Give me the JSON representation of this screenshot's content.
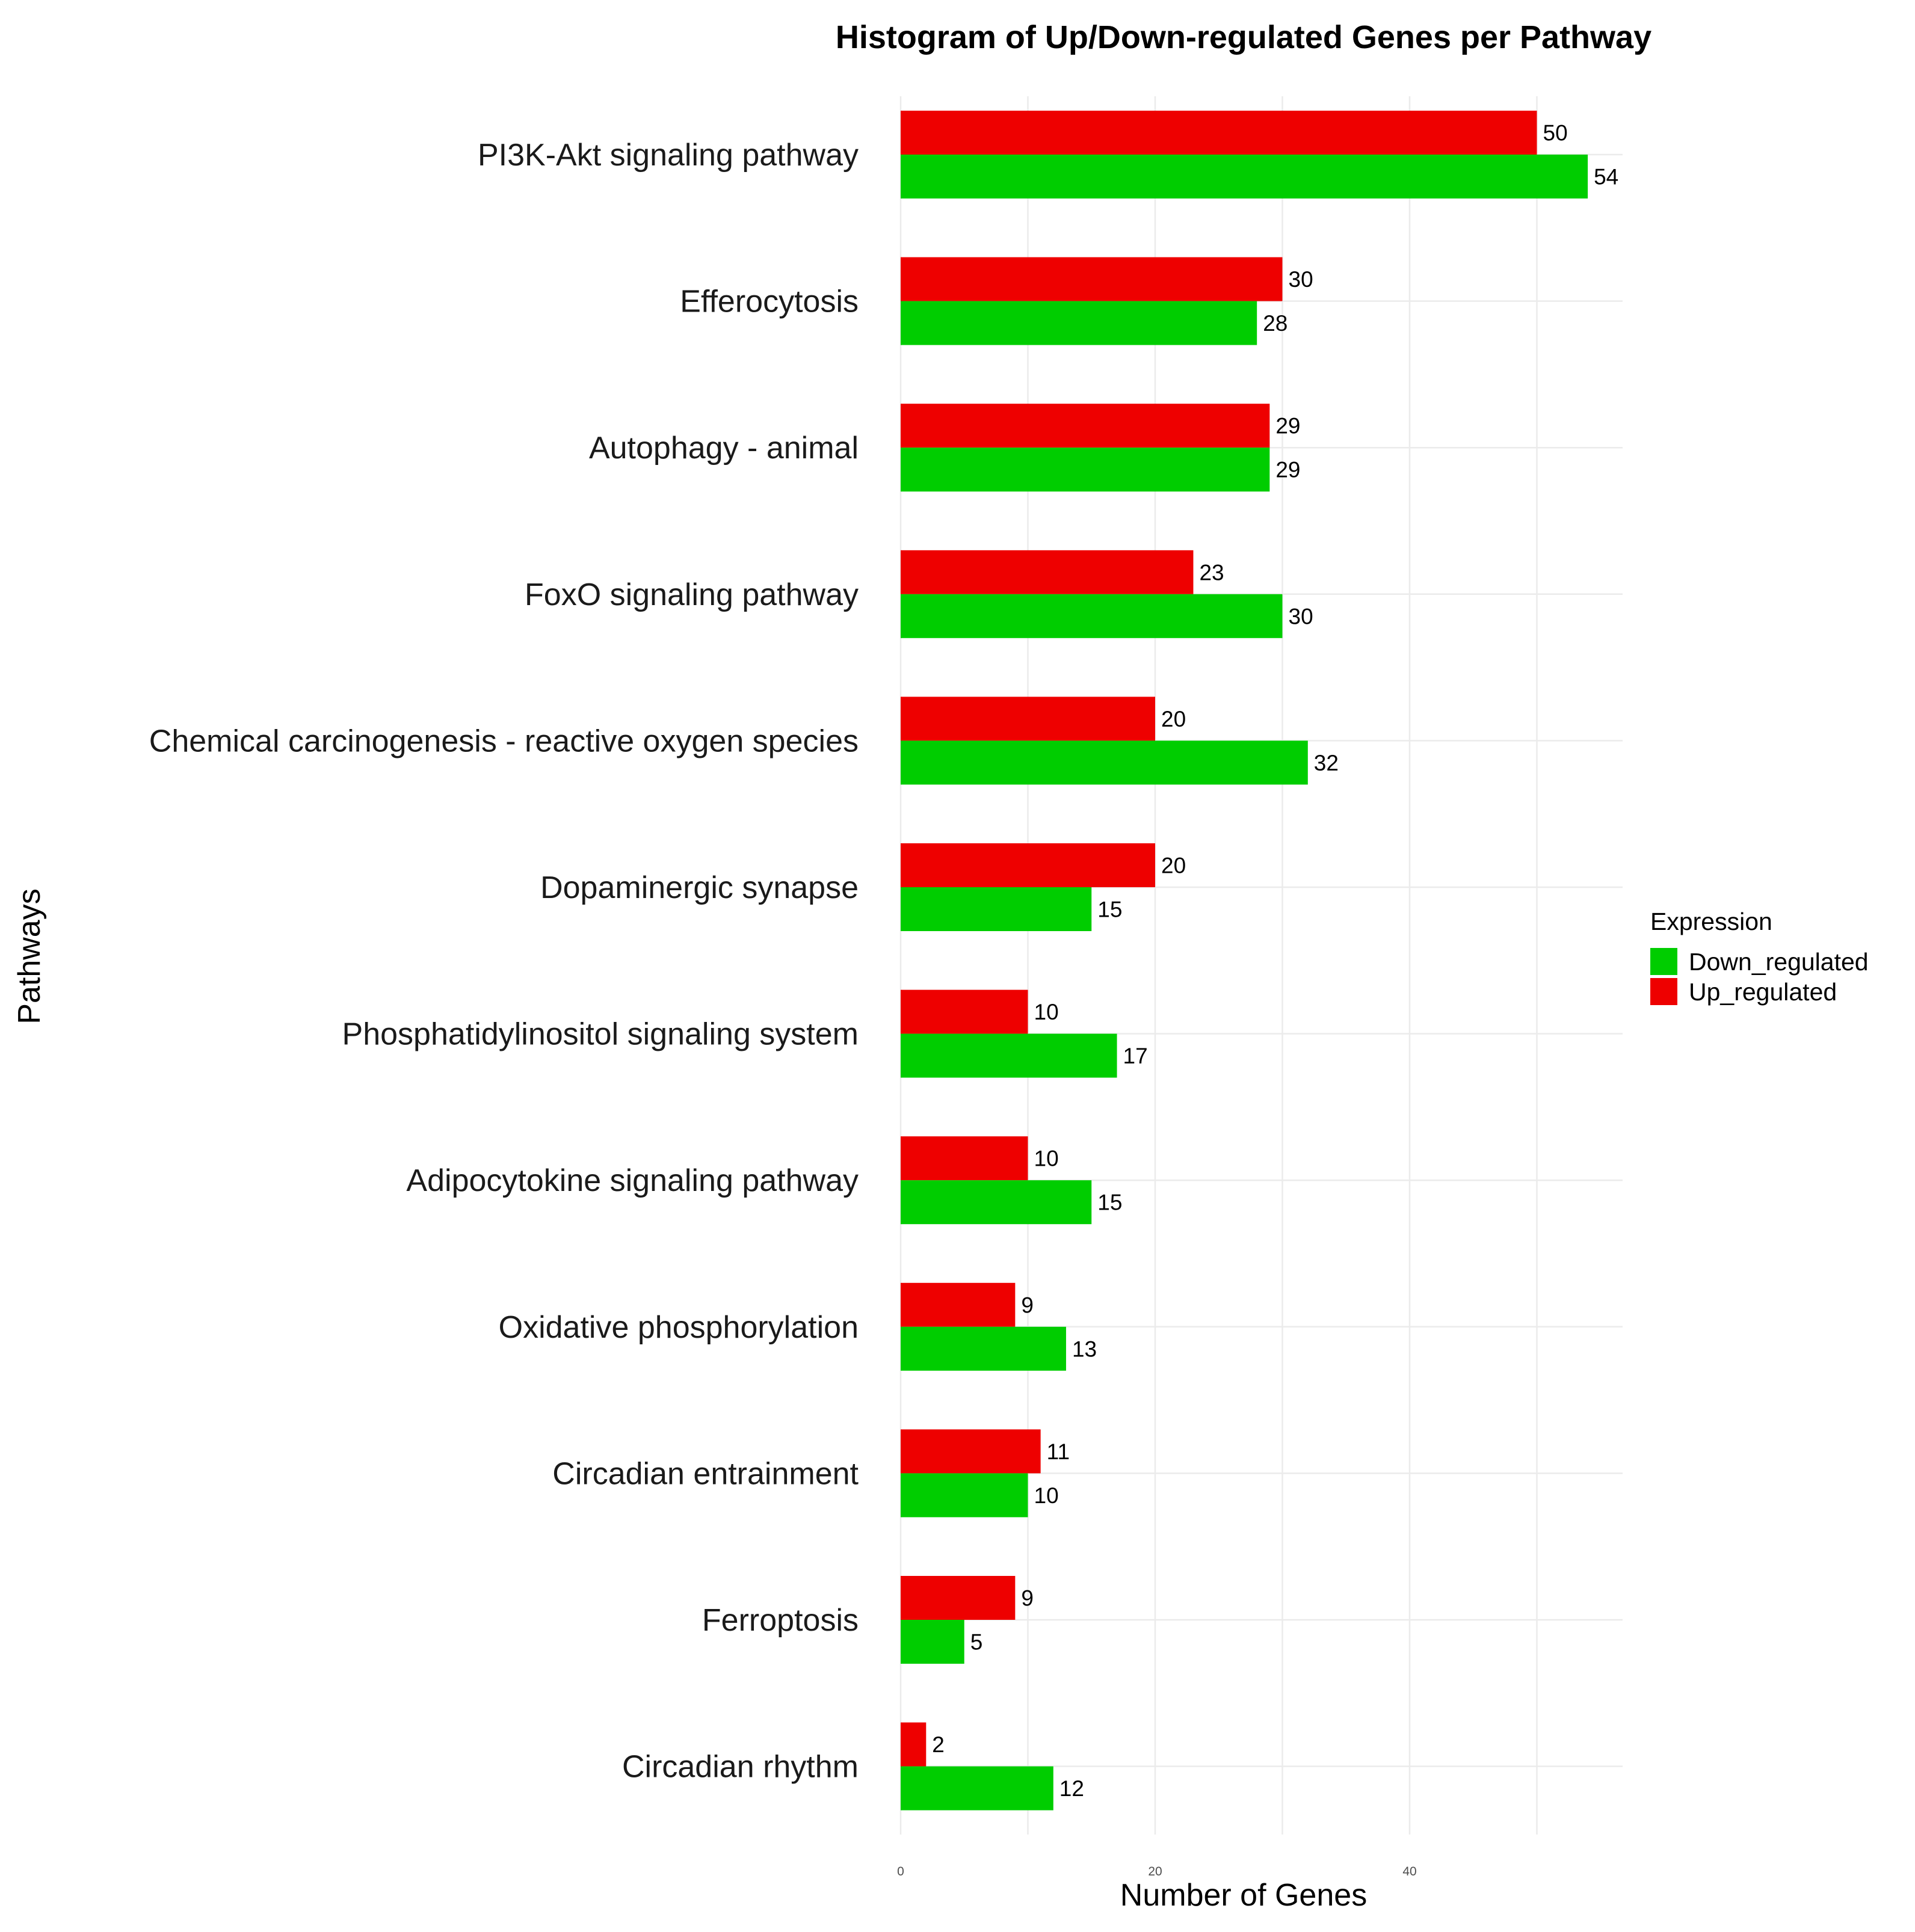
{
  "chart_data": {
    "type": "bar",
    "orientation": "horizontal",
    "title": "Histogram of Up/Down-regulated Genes per Pathway",
    "xlabel": "Number of Genes",
    "ylabel": "Pathways",
    "xlim": [
      0,
      57
    ],
    "xticks": [
      0,
      20,
      40
    ],
    "grid": true,
    "categories": [
      "PI3K-Akt signaling pathway",
      "Efferocytosis",
      "Autophagy - animal",
      "FoxO signaling pathway",
      "Chemical carcinogenesis - reactive oxygen species",
      "Dopaminergic synapse",
      "Phosphatidylinositol signaling system",
      "Adipocytokine signaling pathway",
      "Oxidative phosphorylation",
      "Circadian entrainment",
      "Ferroptosis",
      "Circadian rhythm"
    ],
    "series": [
      {
        "name": "Up_regulated",
        "color": "#ee0000",
        "values": [
          50,
          30,
          29,
          23,
          20,
          20,
          10,
          10,
          9,
          11,
          9,
          2
        ]
      },
      {
        "name": "Down_regulated",
        "color": "#00cd00",
        "values": [
          54,
          28,
          29,
          30,
          32,
          15,
          17,
          15,
          13,
          10,
          5,
          12
        ]
      }
    ],
    "legend": {
      "title": "Expression",
      "position": "right",
      "entries": [
        {
          "label": "Down_regulated",
          "color": "#00cd00"
        },
        {
          "label": "Up_regulated",
          "color": "#ee0000"
        }
      ]
    }
  }
}
